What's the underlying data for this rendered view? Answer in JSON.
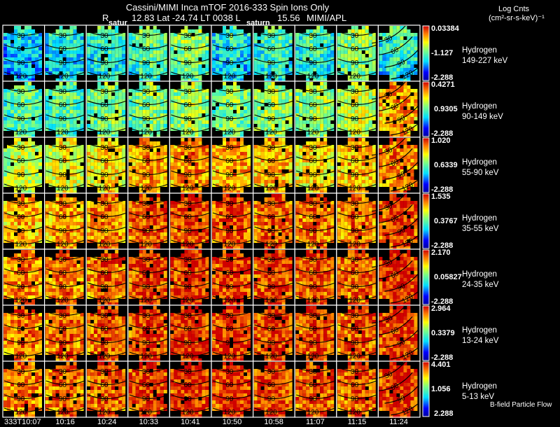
{
  "chart_data": {
    "type": "heatmap",
    "title": "Cassini/MIMI Inca mTOF  2016-333   Spin   Ions Only",
    "subtitle": {
      "r_label": "R",
      "position": "12.83 Lat -24.74 LT 0038 L",
      "l_value": "15.56",
      "source": "MIMI/APL"
    },
    "colorbar_title": "Log Cnts",
    "colorbar_units": "(cm²-sr-s-keV)⁻¹",
    "annotations": [
      "satur",
      "saturn"
    ],
    "footer_label": "B-field Particle Flow",
    "contour_labels": [
      "30",
      "60",
      "90",
      "120"
    ],
    "times": [
      "333T10:07",
      "10:16",
      "10:24",
      "10:33",
      "10:41",
      "10:50",
      "10:58",
      "11:07",
      "11:15",
      "11:24"
    ],
    "rows": [
      {
        "species": "Hydrogen",
        "energy": "149-227 keV",
        "max": "0.03384",
        "mid": "-1.127",
        "min": "-2.288",
        "levels": [
          0.35,
          0.4,
          0.45,
          0.5,
          0.55,
          0.4,
          0.45,
          0.45,
          0.55,
          0.45
        ]
      },
      {
        "species": "Hydrogen",
        "energy": "90-149 keV",
        "max": "0.4271",
        "mid": "0.9305",
        "min": "-2.288",
        "levels": [
          0.45,
          0.45,
          0.5,
          0.5,
          0.55,
          0.5,
          0.55,
          0.55,
          0.6,
          0.78
        ]
      },
      {
        "species": "Hydrogen",
        "energy": "55-90 keV",
        "max": "1.020",
        "mid": "0.6339",
        "min": "-2.288",
        "levels": [
          0.6,
          0.65,
          0.7,
          0.78,
          0.8,
          0.78,
          0.75,
          0.7,
          0.75,
          0.82
        ]
      },
      {
        "species": "Hydrogen",
        "energy": "35-55 keV",
        "max": "1.535",
        "mid": "0.3767",
        "min": "-2.288",
        "levels": [
          0.75,
          0.78,
          0.82,
          0.88,
          0.9,
          0.88,
          0.86,
          0.84,
          0.82,
          0.9
        ]
      },
      {
        "species": "Hydrogen",
        "energy": "24-35 keV",
        "max": "2.170",
        "mid": "0.05827",
        "min": "-2.288",
        "levels": [
          0.8,
          0.82,
          0.85,
          0.9,
          0.92,
          0.9,
          0.9,
          0.88,
          0.85,
          0.92
        ]
      },
      {
        "species": "Hydrogen",
        "energy": "13-24 keV",
        "max": "2.964",
        "mid": "0.3379",
        "min": "-2.288",
        "levels": [
          0.82,
          0.84,
          0.86,
          0.9,
          0.92,
          0.92,
          0.9,
          0.88,
          0.86,
          0.92
        ]
      },
      {
        "species": "Hydrogen",
        "energy": "5-13 keV",
        "max": "4.401",
        "mid": "1.056",
        "min": "2.288",
        "levels": [
          0.82,
          0.84,
          0.86,
          0.9,
          0.92,
          0.92,
          0.9,
          0.88,
          0.86,
          0.92
        ]
      }
    ]
  }
}
